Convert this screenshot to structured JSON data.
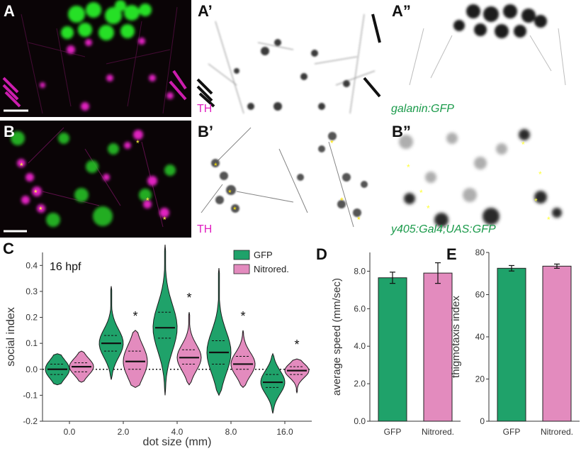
{
  "panels": {
    "a": {
      "label": "A"
    },
    "a1": {
      "label": "A’",
      "caption": "TH"
    },
    "a2": {
      "label": "A”",
      "caption": "galanin:GFP"
    },
    "b": {
      "label": "B"
    },
    "b1": {
      "label": "B’",
      "caption": "TH"
    },
    "b2": {
      "label": "B”",
      "caption": "y405:Gal4;UAS:GFP"
    }
  },
  "colors": {
    "magenta": "#e020c0",
    "green": "#1fd21f",
    "gfp_green": "#1fa26a",
    "nitrored_pink": "#e38bbe",
    "label_green": "#1a9a4a",
    "asterisk_yellow": "#ffff3a"
  },
  "chart_data": [
    {
      "panel": "C",
      "type": "violin",
      "annotation": "16 hpf",
      "xlabel": "dot size (mm)",
      "ylabel": "social index",
      "categories": [
        "0.0",
        "2.0",
        "4.0",
        "8.0",
        "16.0"
      ],
      "ylim": [
        -0.2,
        0.45
      ],
      "yticks": [
        "-0.2",
        "-0.1",
        "0.0",
        "0.1",
        "0.2",
        "0.3",
        "0.4"
      ],
      "reference_line": 0.0,
      "legend_position": "top-right",
      "significance": [
        "",
        "*",
        "*",
        "*",
        "*"
      ],
      "series": [
        {
          "name": "GFP",
          "color": "#1fa26a",
          "median": [
            0.0,
            0.1,
            0.16,
            0.065,
            -0.05
          ],
          "q1": [
            -0.02,
            0.07,
            0.12,
            0.02,
            -0.07
          ],
          "q3": [
            0.02,
            0.13,
            0.22,
            0.11,
            -0.02
          ],
          "min": [
            -0.06,
            -0.04,
            -0.1,
            -0.1,
            -0.17
          ],
          "max": [
            0.06,
            0.32,
            0.48,
            0.39,
            0.06
          ]
        },
        {
          "name": "Nitrored.",
          "color": "#e38bbe",
          "median": [
            0.01,
            0.03,
            0.045,
            0.02,
            -0.005
          ],
          "q1": [
            -0.01,
            0.0,
            0.02,
            0.0,
            -0.02
          ],
          "q3": [
            0.025,
            0.07,
            0.075,
            0.05,
            0.01
          ],
          "min": [
            -0.05,
            -0.07,
            -0.06,
            -0.07,
            -0.09
          ],
          "max": [
            0.07,
            0.15,
            0.22,
            0.15,
            0.04
          ]
        }
      ]
    },
    {
      "panel": "D",
      "type": "bar",
      "categories": [
        "GFP",
        "Nitrored."
      ],
      "values": [
        7.65,
        7.9
      ],
      "errors": [
        0.3,
        0.55
      ],
      "colors": [
        "#1fa26a",
        "#e38bbe"
      ],
      "ylabel": "average speed (mm/sec)",
      "ylim": [
        0,
        9.0
      ],
      "yticks": [
        "0.0",
        "2.0",
        "4.0",
        "6.0",
        "8.0"
      ]
    },
    {
      "panel": "E",
      "type": "bar",
      "categories": [
        "GFP",
        "Nitrored."
      ],
      "values": [
        72.5,
        73.5
      ],
      "errors": [
        1.3,
        1.0
      ],
      "colors": [
        "#1fa26a",
        "#e38bbe"
      ],
      "ylabel": "thigmotaxis index",
      "ylim": [
        0,
        80
      ],
      "yticks": [
        "0",
        "20",
        "40",
        "60",
        "80"
      ]
    }
  ]
}
